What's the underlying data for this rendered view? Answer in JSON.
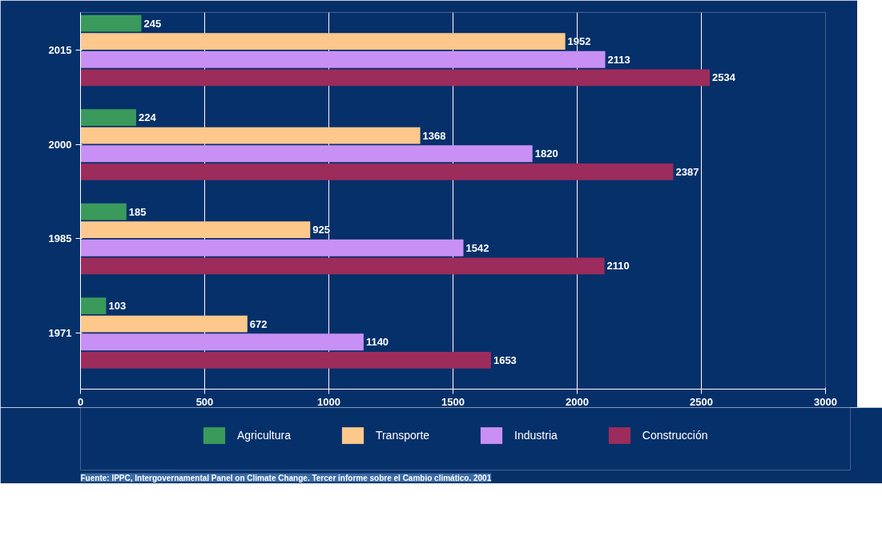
{
  "chart_data": {
    "type": "bar",
    "orientation": "horizontal",
    "categories": [
      "2015",
      "2000",
      "1985",
      "1971"
    ],
    "series": [
      {
        "name": "Agricultura",
        "color": "#3a9a5c",
        "values": [
          245,
          224,
          185,
          103
        ]
      },
      {
        "name": "Transporte",
        "color": "#fcc88c",
        "values": [
          1952,
          1368,
          925,
          672
        ]
      },
      {
        "name": "Industria",
        "color": "#c890f4",
        "values": [
          2113,
          1820,
          1542,
          1140
        ]
      },
      {
        "name": "Construcción",
        "color": "#9c2c5c",
        "values": [
          2534,
          2387,
          2110,
          1653
        ]
      }
    ],
    "xlim": [
      0,
      3000
    ],
    "xticks": [
      0,
      500,
      1000,
      1500,
      2000,
      2500,
      3000
    ],
    "grid": "x",
    "legend": "bottom",
    "data_labels": true,
    "annotations": [
      "Fuente: IPPC, Intergovernamental Panel on Climate Change. Tercer informe sobre el Cambio climático. 2001"
    ]
  }
}
